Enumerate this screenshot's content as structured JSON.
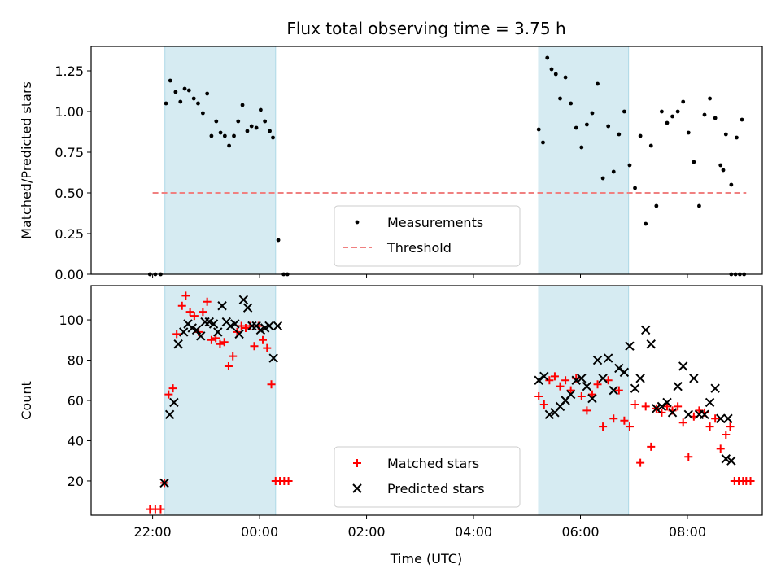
{
  "chart_data": {
    "title": "Flux total observing time = 3.75 h",
    "xlabel": "Time (UTC)",
    "xlim_hours": [
      -1.15,
      11.4
    ],
    "x_ticks": [
      {
        "label": "22:00",
        "value": 0
      },
      {
        "label": "00:00",
        "value": 2
      },
      {
        "label": "02:00",
        "value": 4
      },
      {
        "label": "04:00",
        "value": 6
      },
      {
        "label": "06:00",
        "value": 8
      },
      {
        "label": "08:00",
        "value": 10
      }
    ],
    "shaded_intervals_hours": [
      [
        0.23,
        2.3
      ],
      [
        7.22,
        8.9
      ]
    ],
    "colors": {
      "shade": "#add8e6",
      "measurements": "#000000",
      "threshold": "#f08080",
      "matched": "#ff0000",
      "predicted": "#000000"
    },
    "panels": [
      {
        "type": "scatter",
        "ylabel": "Matched/Predicted stars",
        "ylim": [
          0,
          1.4
        ],
        "y_ticks": [
          "0.00",
          "0.25",
          "0.50",
          "0.75",
          "1.00",
          "1.25"
        ],
        "legend_position": "lower-center",
        "threshold": {
          "name": "Threshold",
          "value": 0.5,
          "x_range": [
            0,
            11.1
          ]
        },
        "series": [
          {
            "name": "Measurements",
            "marker": "dot",
            "x": [
              -0.05,
              0.05,
              0.15,
              0.25,
              0.33,
              0.43,
              0.52,
              0.6,
              0.68,
              0.77,
              0.85,
              0.94,
              1.02,
              1.1,
              1.19,
              1.27,
              1.35,
              1.43,
              1.52,
              1.6,
              1.68,
              1.77,
              1.85,
              1.94,
              2.02,
              2.1,
              2.19,
              2.25,
              2.35,
              2.45,
              2.52,
              7.22,
              7.3,
              7.38,
              7.46,
              7.54,
              7.62,
              7.72,
              7.82,
              7.92,
              8.02,
              8.12,
              8.22,
              8.32,
              8.42,
              8.52,
              8.62,
              8.72,
              8.82,
              8.92,
              9.02,
              9.12,
              9.22,
              9.32,
              9.42,
              9.52,
              9.62,
              9.72,
              9.82,
              9.92,
              10.02,
              10.12,
              10.22,
              10.32,
              10.42,
              10.52,
              10.62,
              10.72,
              10.82,
              10.92,
              11.02
            ],
            "y": [
              0,
              0,
              0,
              1.05,
              1.19,
              1.12,
              1.06,
              1.14,
              1.13,
              1.08,
              1.05,
              0.99,
              1.11,
              0.85,
              0.94,
              0.87,
              0.85,
              0.79,
              0.85,
              0.94,
              1.04,
              0.88,
              0.91,
              0.9,
              1.01,
              0.94,
              0.88,
              0.84,
              0.21,
              0,
              0,
              0.89,
              0.81,
              1.33,
              1.26,
              1.23,
              1.08,
              1.21,
              1.05,
              0.9,
              0.78,
              0.92,
              0.99,
              1.17,
              0.59,
              0.91,
              0.63,
              0.86,
              1.0,
              0.67,
              0.53,
              0.85,
              0.31,
              0.79,
              0.42,
              1.0,
              0.93,
              0.97,
              1.0,
              1.06,
              0.87,
              0.69,
              0.42,
              0.98,
              1.08,
              0.96,
              0.67,
              0.86,
              0.55,
              0.84,
              0.95
            ],
            "xy_extra": [
              [
                10.67,
                0.64
              ],
              [
                10.82,
                0
              ],
              [
                10.9,
                0
              ],
              [
                10.98,
                0
              ],
              [
                11.06,
                0
              ]
            ]
          }
        ]
      },
      {
        "type": "scatter",
        "ylabel": "Count",
        "ylim": [
          3,
          117
        ],
        "y_ticks": [
          "20",
          "40",
          "60",
          "80",
          "100"
        ],
        "legend_position": "lower-center",
        "series": [
          {
            "name": "Matched stars",
            "marker": "plus",
            "x": [
              -0.05,
              0.05,
              0.15,
              0.22,
              0.3,
              0.38,
              0.45,
              0.55,
              0.62,
              0.7,
              0.78,
              0.86,
              0.94,
              1.02,
              1.1,
              1.18,
              1.26,
              1.34,
              1.42,
              1.5,
              1.58,
              1.66,
              1.74,
              1.82,
              1.9,
              1.98,
              2.06,
              2.14,
              2.22,
              2.3,
              2.38,
              2.46,
              2.54,
              7.22,
              7.32,
              7.42,
              7.52,
              7.62,
              7.72,
              7.82,
              7.92,
              8.02,
              8.12,
              8.22,
              8.32,
              8.42,
              8.52,
              8.62,
              8.72,
              8.82,
              8.92,
              9.02,
              9.12,
              9.22,
              9.32,
              9.42,
              9.52,
              9.62,
              9.72,
              9.82,
              9.92,
              10.02,
              10.12,
              10.22,
              10.32,
              10.42,
              10.52,
              10.62,
              10.72,
              10.8,
              10.88,
              10.96,
              11.04
            ],
            "y": [
              6,
              6,
              6,
              19,
              63,
              66,
              93,
              107,
              112,
              104,
              102,
              94,
              104,
              109,
              90,
              91,
              88,
              89,
              77,
              82,
              94,
              97,
              96,
              97,
              87,
              97,
              90,
              86,
              68,
              20,
              20,
              20,
              20,
              62,
              58,
              70,
              72,
              67,
              70,
              65,
              71,
              62,
              55,
              63,
              68,
              47,
              70,
              51,
              65,
              50,
              47,
              58,
              29,
              57,
              37,
              56,
              54,
              57,
              55,
              57,
              49,
              32,
              52,
              55,
              54,
              47,
              51,
              36,
              43,
              47,
              20,
              20,
              20
            ],
            "xy_extra": [
              [
                11.1,
                20
              ],
              [
                11.18,
                20
              ]
            ]
          },
          {
            "name": "Predicted stars",
            "marker": "x",
            "x": [
              0.22,
              0.32,
              0.4,
              0.48,
              0.58,
              0.66,
              0.74,
              0.82,
              0.9,
              0.98,
              1.06,
              1.14,
              1.22,
              1.3,
              1.38,
              1.46,
              1.54,
              1.62,
              1.7,
              1.78,
              1.86,
              1.94,
              2.02,
              2.1,
              2.18,
              2.26,
              2.34,
              7.22,
              7.32,
              7.42,
              7.52,
              7.62,
              7.72,
              7.82,
              7.92,
              8.02,
              8.12,
              8.22,
              8.32,
              8.42,
              8.52,
              8.62,
              8.72,
              8.82,
              8.92,
              9.02,
              9.12,
              9.22,
              9.32,
              9.42,
              9.52,
              9.62,
              9.72,
              9.82,
              9.92,
              10.02,
              10.12,
              10.22,
              10.32,
              10.42,
              10.52,
              10.62,
              10.72,
              10.82
            ],
            "y": [
              19,
              53,
              59,
              88,
              94,
              98,
              96,
              95,
              92,
              99,
              99,
              98,
              94,
              107,
              99,
              97,
              98,
              93,
              110,
              106,
              97,
              97,
              95,
              96,
              97,
              81,
              97,
              70,
              72,
              53,
              54,
              57,
              60,
              63,
              70,
              71,
              67,
              61,
              80,
              71,
              81,
              65,
              76,
              74,
              87,
              66,
              71,
              95,
              88,
              56,
              57,
              59,
              54,
              67,
              77,
              53,
              71,
              53,
              53,
              59,
              66,
              51,
              31,
              30
            ],
            "xy_extra": [
              [
                10.76,
                51
              ]
            ]
          }
        ]
      }
    ]
  }
}
